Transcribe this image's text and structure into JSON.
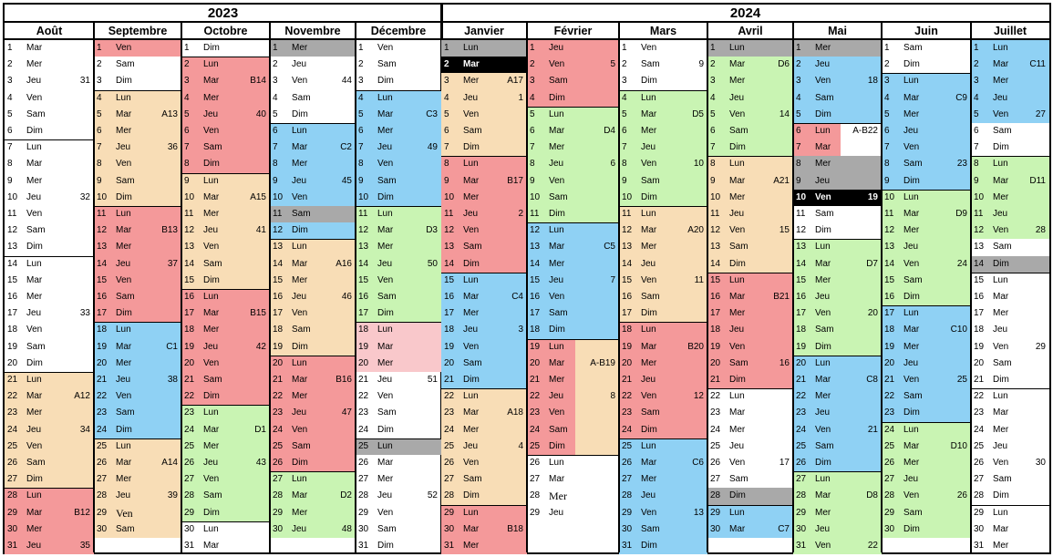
{
  "years": [
    {
      "label": "2023",
      "start": 0,
      "end": 5
    },
    {
      "label": "2024",
      "start": 5,
      "end": 12
    }
  ],
  "colors": {
    "red": "#f4999a",
    "orange": "#f8ddb6",
    "green": "#c9f4b3",
    "blue": "#8fd1f4",
    "gray": "#a9a9a9",
    "black": "#000000",
    "pink": "#f9c8cb"
  },
  "months": [
    {
      "name": "Août",
      "start": 2,
      "days": 31,
      "notes": {
        "3": "31",
        "10": "32",
        "17": "33",
        "22": "A12",
        "24": "34",
        "29": "B12",
        "31": "35"
      },
      "fill": [
        [
          "orange",
          21,
          27
        ],
        [
          "red",
          28,
          31
        ]
      ]
    },
    {
      "name": "Septembre",
      "start": 5,
      "days": 30,
      "notes": {
        "5": "A13",
        "7": "36",
        "12": "B13",
        "14": "37",
        "19": "C1",
        "21": "38",
        "26": "A14",
        "28": "39"
      },
      "fill": [
        [
          "red",
          1,
          1
        ],
        [
          "orange",
          4,
          10
        ],
        [
          "red",
          11,
          17
        ],
        [
          "blue",
          18,
          24
        ],
        [
          "orange",
          25,
          30
        ]
      ],
      "serif": [
        29
      ]
    },
    {
      "name": "Octobre",
      "start": 7,
      "days": 31,
      "notes": {
        "3": "B14",
        "5": "40",
        "10": "A15",
        "12": "41",
        "17": "B15",
        "19": "42",
        "24": "D1",
        "26": "43"
      },
      "fill": [
        [
          "red",
          2,
          8
        ],
        [
          "orange",
          9,
          15
        ],
        [
          "red",
          16,
          22
        ],
        [
          "green",
          23,
          29
        ]
      ]
    },
    {
      "name": "Novembre",
      "start": 3,
      "days": 30,
      "notes": {
        "3": "44",
        "9": "45",
        "7": "C2",
        "14": "A16",
        "16": "46",
        "21": "B16",
        "23": "47",
        "28": "D2",
        "30": "48"
      },
      "fill": [
        [
          "gray",
          1,
          1
        ],
        [
          "blue",
          6,
          12
        ],
        [
          "gray",
          11,
          11
        ],
        [
          "orange",
          13,
          19
        ],
        [
          "red",
          20,
          26
        ],
        [
          "green",
          27,
          30
        ]
      ]
    },
    {
      "name": "Décembre",
      "start": 5,
      "days": 31,
      "notes": {
        "5": "C3",
        "7": "49",
        "12": "D3",
        "14": "50",
        "21": "51",
        "28": "52"
      },
      "fill": [
        [
          "blue",
          4,
          10
        ],
        [
          "green",
          11,
          17
        ],
        [
          "pink",
          18,
          20
        ],
        [
          "gray",
          25,
          25
        ]
      ]
    },
    {
      "name": "Janvier",
      "start": 1,
      "days": 31,
      "notes": {
        "3": "A17",
        "4": "1",
        "9": "B17",
        "11": "2",
        "16": "C4",
        "18": "3",
        "23": "A18",
        "25": "4",
        "30": "B18"
      },
      "fill": [
        [
          "gray",
          1,
          1
        ],
        [
          "black",
          2,
          2
        ],
        [
          "orange",
          3,
          7
        ],
        [
          "red",
          8,
          14
        ],
        [
          "blue",
          15,
          21
        ],
        [
          "orange",
          22,
          28
        ],
        [
          "red",
          29,
          31
        ]
      ],
      "bold": [
        2
      ]
    },
    {
      "name": "Février",
      "start": 4,
      "days": 29,
      "notes": {
        "2": "5",
        "6": "D4",
        "8": "6",
        "13": "C5",
        "15": "7",
        "20": "A-B19",
        "22": "8"
      },
      "fill": [
        [
          "red",
          1,
          4
        ],
        [
          "green",
          5,
          11
        ],
        [
          "blue",
          12,
          18
        ],
        [
          "orange",
          19,
          25
        ],
        [
          "red",
          19,
          25,
          "left"
        ]
      ],
      "serif": [
        28
      ]
    },
    {
      "name": "Mars",
      "start": 5,
      "days": 31,
      "notes": {
        "2": "9",
        "5": "D5",
        "8": "10",
        "12": "A20",
        "15": "11",
        "19": "B20",
        "22": "12",
        "26": "C6",
        "29": "13"
      },
      "fill": [
        [
          "green",
          4,
          10
        ],
        [
          "orange",
          11,
          17
        ],
        [
          "red",
          18,
          24
        ],
        [
          "blue",
          25,
          31
        ]
      ]
    },
    {
      "name": "Avril",
      "start": 1,
      "days": 30,
      "notes": {
        "2": "D6",
        "5": "14",
        "9": "A21",
        "12": "15",
        "16": "B21",
        "20": "16",
        "26": "17",
        "30": "C7"
      },
      "fill": [
        [
          "gray",
          1,
          1
        ],
        [
          "green",
          2,
          7
        ],
        [
          "orange",
          8,
          14
        ],
        [
          "red",
          15,
          21
        ],
        [
          "gray",
          28,
          28
        ],
        [
          "blue",
          29,
          30
        ]
      ]
    },
    {
      "name": "Mai",
      "start": 3,
      "days": 31,
      "notes": {
        "3": "18",
        "6": "A-B22",
        "10": "19",
        "14": "D7",
        "17": "20",
        "21": "C8",
        "24": "21",
        "28": "D8",
        "31": "22"
      },
      "fill": [
        [
          "gray",
          1,
          1
        ],
        [
          "blue",
          2,
          5
        ],
        [
          "red",
          6,
          7,
          "mid"
        ],
        [
          "gray",
          8,
          9
        ],
        [
          "black",
          10,
          10
        ],
        [
          "green",
          13,
          19
        ],
        [
          "blue",
          20,
          26
        ],
        [
          "green",
          27,
          31
        ]
      ],
      "bold": [
        10
      ]
    },
    {
      "name": "Juin",
      "start": 6,
      "days": 30,
      "notes": {
        "4": "C9",
        "8": "23",
        "11": "D9",
        "14": "24",
        "18": "C10",
        "21": "25",
        "25": "D10",
        "28": "26"
      },
      "fill": [
        [
          "blue",
          3,
          9
        ],
        [
          "green",
          10,
          16
        ],
        [
          "blue",
          17,
          23
        ],
        [
          "green",
          24,
          30
        ]
      ]
    },
    {
      "name": "Juillet",
      "start": 1,
      "days": 31,
      "notes": {
        "2": "C11",
        "5": "27",
        "9": "D11",
        "12": "28",
        "19": "29",
        "26": "30"
      },
      "fill": [
        [
          "blue",
          1,
          5
        ],
        [
          "green",
          8,
          12
        ],
        [
          "gray",
          14,
          14
        ]
      ]
    }
  ],
  "weekday_abbr": [
    "Lun",
    "Mar",
    "Mer",
    "Jeu",
    "Ven",
    "Sam",
    "Dim"
  ]
}
